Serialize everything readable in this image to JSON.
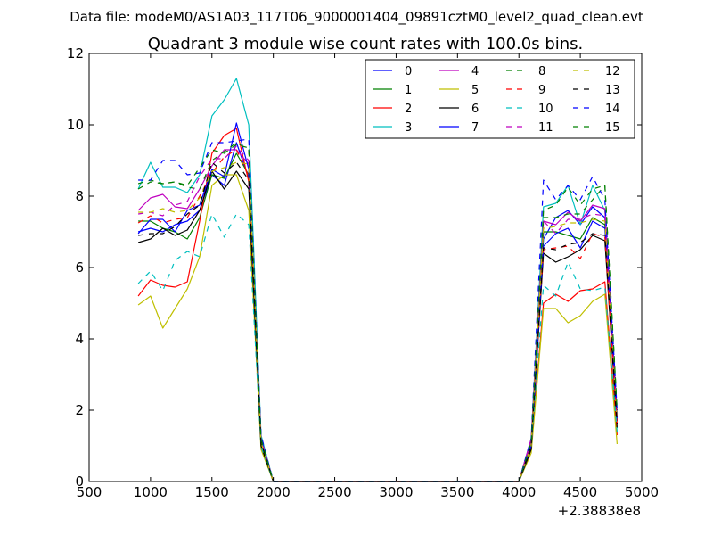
{
  "chart_data": {
    "type": "line",
    "suptitle": "Data file: modeM0/AS1A03_117T06_9000001404_09891cztM0_level2_quad_clean.evt",
    "title": "Quadrant 3 module wise count rates with 100.0s bins.",
    "xlabel": "",
    "ylabel": "",
    "x_offset_label": "+2.38838e8",
    "xlim": [
      500,
      5000
    ],
    "ylim": [
      0,
      12
    ],
    "xticks": [
      500,
      1000,
      1500,
      2000,
      2500,
      3000,
      3500,
      4000,
      4500,
      5000
    ],
    "yticks": [
      0,
      2,
      4,
      6,
      8,
      10,
      12
    ],
    "xtick_labels": [
      "500",
      "1000",
      "1500",
      "2000",
      "2500",
      "3000",
      "3500",
      "4000",
      "4500",
      "5000"
    ],
    "ytick_labels": [
      "0",
      "2",
      "4",
      "6",
      "8",
      "10",
      "12"
    ],
    "legend_position": "top-right",
    "x": [
      900,
      1000,
      1100,
      1200,
      1300,
      1400,
      1500,
      1600,
      1700,
      1800,
      1900,
      2000,
      2100,
      2200,
      2300,
      2400,
      2500,
      2600,
      2700,
      2800,
      2900,
      3000,
      3100,
      3200,
      3300,
      3400,
      3500,
      3600,
      3700,
      3800,
      3900,
      4000,
      4100,
      4200,
      4300,
      4400,
      4500,
      4600,
      4700,
      4800
    ],
    "series": [
      {
        "name": "0",
        "color": "#0000ff",
        "dash": "solid",
        "values": [
          7.0,
          7.1,
          7.0,
          7.2,
          7.3,
          7.6,
          8.6,
          8.3,
          9.5,
          8.5,
          1.1,
          0,
          0,
          0,
          0,
          0,
          0,
          0,
          0,
          0,
          0,
          0,
          0,
          0,
          0,
          0,
          0,
          0,
          0,
          0,
          0,
          0,
          1.0,
          6.8,
          7.4,
          7.6,
          7.2,
          7.7,
          7.4,
          1.8
        ]
      },
      {
        "name": "1",
        "color": "#008000",
        "dash": "solid",
        "values": [
          7.3,
          7.3,
          7.1,
          7.0,
          6.8,
          7.4,
          8.6,
          8.5,
          9.2,
          8.6,
          1.1,
          0,
          0,
          0,
          0,
          0,
          0,
          0,
          0,
          0,
          0,
          0,
          0,
          0,
          0,
          0,
          0,
          0,
          0,
          0,
          0,
          0,
          1.1,
          7.0,
          7.0,
          6.9,
          6.8,
          7.4,
          7.2,
          1.7
        ]
      },
      {
        "name": "2",
        "color": "#ff0000",
        "dash": "solid",
        "values": [
          5.2,
          5.65,
          5.5,
          5.45,
          5.6,
          7.3,
          9.2,
          9.7,
          9.9,
          8.4,
          1.0,
          0,
          0,
          0,
          0,
          0,
          0,
          0,
          0,
          0,
          0,
          0,
          0,
          0,
          0,
          0,
          0,
          0,
          0,
          0,
          0,
          0,
          0.9,
          5.0,
          5.25,
          5.05,
          5.35,
          5.4,
          5.6,
          1.3
        ]
      },
      {
        "name": "3",
        "color": "#00bfbf",
        "dash": "solid",
        "values": [
          8.2,
          8.95,
          8.25,
          8.25,
          8.1,
          8.6,
          10.25,
          10.7,
          11.3,
          10.0,
          1.3,
          0,
          0,
          0,
          0,
          0,
          0,
          0,
          0,
          0,
          0,
          0,
          0,
          0,
          0,
          0,
          0,
          0,
          0,
          0,
          0,
          0,
          1.2,
          7.7,
          7.8,
          8.3,
          7.2,
          8.3,
          7.6,
          1.9
        ]
      },
      {
        "name": "4",
        "color": "#bf00bf",
        "dash": "solid",
        "values": [
          7.6,
          7.95,
          8.05,
          7.7,
          7.65,
          8.2,
          8.85,
          9.3,
          9.3,
          8.9,
          1.2,
          0,
          0,
          0,
          0,
          0,
          0,
          0,
          0,
          0,
          0,
          0,
          0,
          0,
          0,
          0,
          0,
          0,
          0,
          0,
          0,
          0,
          1.2,
          7.3,
          7.2,
          7.55,
          7.3,
          7.75,
          7.65,
          1.8
        ]
      },
      {
        "name": "5",
        "color": "#bfbf00",
        "dash": "solid",
        "values": [
          4.95,
          5.2,
          4.3,
          4.85,
          5.4,
          6.3,
          8.3,
          8.6,
          8.6,
          7.6,
          0.9,
          0,
          0,
          0,
          0,
          0,
          0,
          0,
          0,
          0,
          0,
          0,
          0,
          0,
          0,
          0,
          0,
          0,
          0,
          0,
          0,
          0,
          0.8,
          4.85,
          4.85,
          4.45,
          4.65,
          5.05,
          5.25,
          1.05
        ]
      },
      {
        "name": "6",
        "color": "#000000",
        "dash": "solid",
        "values": [
          6.7,
          6.8,
          7.1,
          6.9,
          7.05,
          7.6,
          8.7,
          8.2,
          8.7,
          8.2,
          1.0,
          0,
          0,
          0,
          0,
          0,
          0,
          0,
          0,
          0,
          0,
          0,
          0,
          0,
          0,
          0,
          0,
          0,
          0,
          0,
          0,
          0,
          0.9,
          6.4,
          6.15,
          6.3,
          6.5,
          6.9,
          6.75,
          1.5
        ]
      },
      {
        "name": "7",
        "color": "#0000ff",
        "dash": "solid",
        "values": [
          6.95,
          7.35,
          7.35,
          7.0,
          7.6,
          7.75,
          8.75,
          8.55,
          10.05,
          8.75,
          1.2,
          0,
          0,
          0,
          0,
          0,
          0,
          0,
          0,
          0,
          0,
          0,
          0,
          0,
          0,
          0,
          0,
          0,
          0,
          0,
          0,
          0,
          1.0,
          6.6,
          6.95,
          7.1,
          6.55,
          7.3,
          7.1,
          1.7
        ]
      },
      {
        "name": "8",
        "color": "#008000",
        "dash": "dashed",
        "values": [
          8.35,
          8.45,
          8.35,
          8.4,
          8.25,
          8.2,
          9.0,
          9.25,
          9.5,
          9.3,
          1.2,
          0,
          0,
          0,
          0,
          0,
          0,
          0,
          0,
          0,
          0,
          0,
          0,
          0,
          0,
          0,
          0,
          0,
          0,
          0,
          0,
          0,
          1.1,
          7.4,
          7.4,
          7.5,
          7.5,
          7.9,
          8.3,
          2.0
        ]
      },
      {
        "name": "9",
        "color": "#ff0000",
        "dash": "dashed",
        "values": [
          7.25,
          7.45,
          7.25,
          7.35,
          7.4,
          8.0,
          8.65,
          9.1,
          9.3,
          8.55,
          1.1,
          0,
          0,
          0,
          0,
          0,
          0,
          0,
          0,
          0,
          0,
          0,
          0,
          0,
          0,
          0,
          0,
          0,
          0,
          0,
          0,
          0,
          1.0,
          6.5,
          6.55,
          6.6,
          6.25,
          6.95,
          6.85,
          1.6
        ]
      },
      {
        "name": "10",
        "color": "#00bfbf",
        "dash": "dashed",
        "values": [
          5.55,
          5.9,
          5.35,
          6.2,
          6.45,
          6.3,
          7.5,
          6.85,
          7.5,
          7.2,
          1.0,
          0,
          0,
          0,
          0,
          0,
          0,
          0,
          0,
          0,
          0,
          0,
          0,
          0,
          0,
          0,
          0,
          0,
          0,
          0,
          0,
          0,
          1.0,
          5.5,
          5.2,
          6.15,
          5.4,
          5.35,
          5.45,
          1.4
        ]
      },
      {
        "name": "11",
        "color": "#bf00bf",
        "dash": "dashed",
        "values": [
          7.5,
          7.55,
          7.45,
          7.75,
          7.85,
          8.55,
          9.05,
          9.05,
          9.4,
          9.0,
          1.2,
          0,
          0,
          0,
          0,
          0,
          0,
          0,
          0,
          0,
          0,
          0,
          0,
          0,
          0,
          0,
          0,
          0,
          0,
          0,
          0,
          0,
          1.1,
          7.3,
          6.95,
          7.35,
          7.35,
          7.5,
          7.45,
          1.8
        ]
      },
      {
        "name": "12",
        "color": "#bfbf00",
        "dash": "dashed",
        "values": [
          7.55,
          7.55,
          7.65,
          7.55,
          7.6,
          7.95,
          8.7,
          8.8,
          8.95,
          8.9,
          1.1,
          0,
          0,
          0,
          0,
          0,
          0,
          0,
          0,
          0,
          0,
          0,
          0,
          0,
          0,
          0,
          0,
          0,
          0,
          0,
          0,
          0,
          1.0,
          7.1,
          7.15,
          7.25,
          7.25,
          7.35,
          7.3,
          1.7
        ]
      },
      {
        "name": "13",
        "color": "#000000",
        "dash": "dashed",
        "values": [
          6.9,
          6.95,
          6.95,
          7.15,
          7.5,
          7.75,
          8.95,
          8.65,
          8.95,
          8.45,
          1.1,
          0,
          0,
          0,
          0,
          0,
          0,
          0,
          0,
          0,
          0,
          0,
          0,
          0,
          0,
          0,
          0,
          0,
          0,
          0,
          0,
          0,
          1.0,
          6.55,
          6.5,
          6.65,
          6.7,
          6.95,
          6.9,
          1.6
        ]
      },
      {
        "name": "14",
        "color": "#0000ff",
        "dash": "dashed",
        "values": [
          8.45,
          8.45,
          9.0,
          9.0,
          8.6,
          8.65,
          9.5,
          9.5,
          9.55,
          9.6,
          1.3,
          0,
          0,
          0,
          0,
          0,
          0,
          0,
          0,
          0,
          0,
          0,
          0,
          0,
          0,
          0,
          0,
          0,
          0,
          0,
          0,
          0,
          1.2,
          8.45,
          7.9,
          8.3,
          7.9,
          8.55,
          7.9,
          2.0
        ]
      },
      {
        "name": "15",
        "color": "#008000",
        "dash": "dashed",
        "values": [
          8.2,
          8.4,
          8.35,
          8.4,
          8.3,
          8.8,
          9.3,
          9.2,
          9.45,
          9.35,
          1.2,
          0,
          0,
          0,
          0,
          0,
          0,
          0,
          0,
          0,
          0,
          0,
          0,
          0,
          0,
          0,
          0,
          0,
          0,
          0,
          0,
          0,
          1.1,
          7.6,
          7.75,
          8.25,
          7.75,
          8.2,
          8.3,
          2.0
        ]
      }
    ]
  }
}
